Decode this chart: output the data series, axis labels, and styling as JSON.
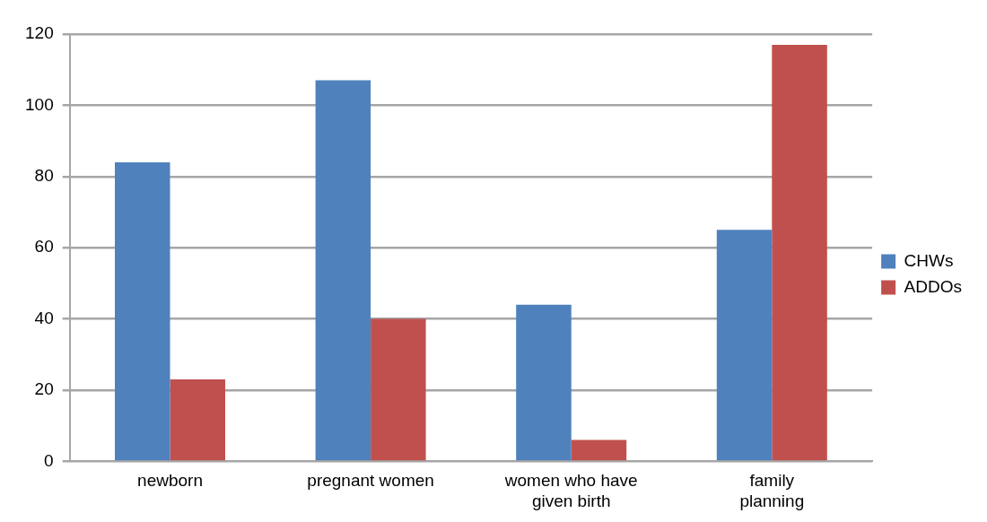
{
  "chart_data": {
    "type": "bar",
    "categories": [
      "newborn",
      "pregnant women",
      "women who have given birth",
      "family planning"
    ],
    "series": [
      {
        "name": "CHWs",
        "color": "#4f81bd",
        "values": [
          84,
          107,
          44,
          65
        ]
      },
      {
        "name": "ADDOs",
        "color": "#c0504d",
        "values": [
          23,
          40,
          6,
          117
        ]
      }
    ],
    "ylim": [
      0,
      120
    ],
    "yticks": [
      0,
      20,
      40,
      60,
      80,
      100,
      120
    ],
    "grid": "y",
    "legend": "right"
  }
}
